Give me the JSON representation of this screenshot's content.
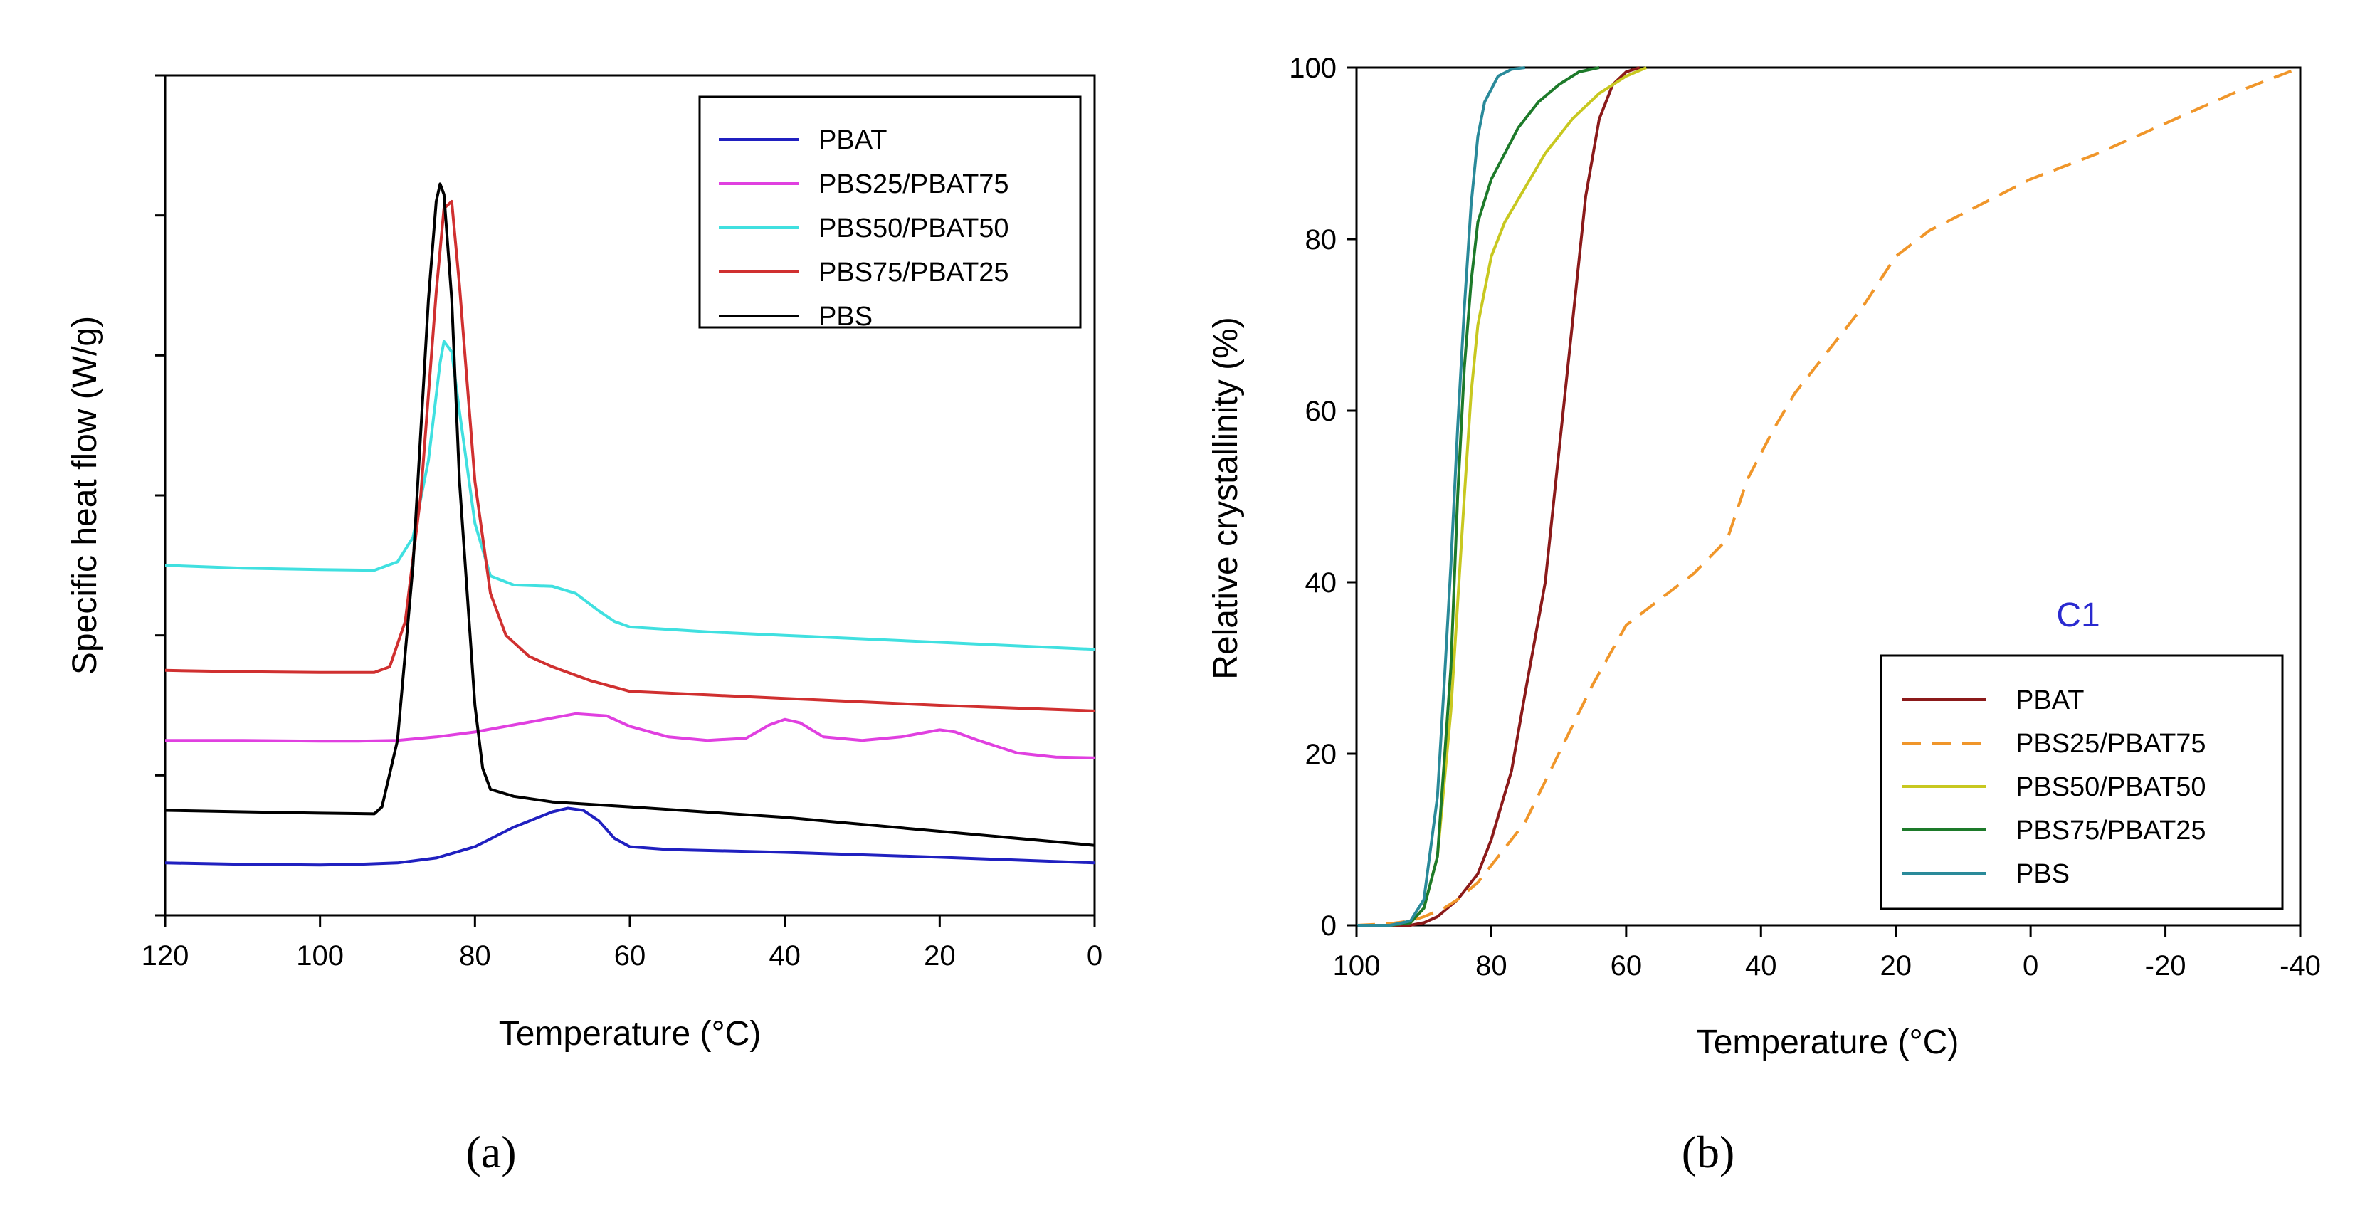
{
  "chart_data": [
    {
      "id": "a",
      "type": "line",
      "panel_label": "(a)",
      "title": "",
      "xlabel": "Temperature (°C)",
      "ylabel": "Specific heat flow (W/g)",
      "xlim": [
        120,
        0
      ],
      "x_ticks": [
        120,
        100,
        80,
        60,
        40,
        20,
        0
      ],
      "y_ticks_unlabeled": 7,
      "legend_position": "top-right",
      "series": [
        {
          "name": "PBAT",
          "color": "#2020c0",
          "points": [
            [
              120,
              -0.25
            ],
            [
              110,
              -0.27
            ],
            [
              100,
              -0.28
            ],
            [
              95,
              -0.27
            ],
            [
              90,
              -0.25
            ],
            [
              85,
              -0.18
            ],
            [
              80,
              -0.02
            ],
            [
              75,
              0.26
            ],
            [
              70,
              0.48
            ],
            [
              68,
              0.53
            ],
            [
              66,
              0.5
            ],
            [
              64,
              0.35
            ],
            [
              62,
              0.1
            ],
            [
              60,
              -0.02
            ],
            [
              55,
              -0.06
            ],
            [
              40,
              -0.1
            ],
            [
              20,
              -0.17
            ],
            [
              0,
              -0.25
            ]
          ]
        },
        {
          "name": "PBS25/PBAT75",
          "color": "#e040e0",
          "points": [
            [
              120,
              1.5
            ],
            [
              110,
              1.5
            ],
            [
              100,
              1.49
            ],
            [
              95,
              1.49
            ],
            [
              90,
              1.5
            ],
            [
              85,
              1.55
            ],
            [
              80,
              1.62
            ],
            [
              75,
              1.72
            ],
            [
              70,
              1.82
            ],
            [
              67,
              1.88
            ],
            [
              63,
              1.85
            ],
            [
              60,
              1.7
            ],
            [
              55,
              1.55
            ],
            [
              50,
              1.5
            ],
            [
              45,
              1.53
            ],
            [
              42,
              1.72
            ],
            [
              40,
              1.8
            ],
            [
              38,
              1.75
            ],
            [
              35,
              1.55
            ],
            [
              30,
              1.5
            ],
            [
              25,
              1.55
            ],
            [
              20,
              1.65
            ],
            [
              18,
              1.62
            ],
            [
              15,
              1.5
            ],
            [
              10,
              1.32
            ],
            [
              5,
              1.26
            ],
            [
              0,
              1.25
            ]
          ]
        },
        {
          "name": "PBS50/PBAT50",
          "color": "#40e0e0",
          "points": [
            [
              120,
              4.0
            ],
            [
              110,
              3.96
            ],
            [
              100,
              3.94
            ],
            [
              93,
              3.93
            ],
            [
              90,
              4.05
            ],
            [
              88,
              4.4
            ],
            [
              86,
              5.5
            ],
            [
              84.5,
              6.9
            ],
            [
              84,
              7.2
            ],
            [
              83,
              7.05
            ],
            [
              82,
              6.2
            ],
            [
              80,
              4.6
            ],
            [
              78,
              3.85
            ],
            [
              75,
              3.72
            ],
            [
              70,
              3.7
            ],
            [
              67,
              3.6
            ],
            [
              64,
              3.35
            ],
            [
              62,
              3.2
            ],
            [
              60,
              3.12
            ],
            [
              50,
              3.05
            ],
            [
              40,
              3.0
            ],
            [
              20,
              2.9
            ],
            [
              0,
              2.8
            ]
          ]
        },
        {
          "name": "PBS75/PBAT25",
          "color": "#d03030",
          "points": [
            [
              120,
              2.5
            ],
            [
              110,
              2.48
            ],
            [
              100,
              2.47
            ],
            [
              93,
              2.47
            ],
            [
              91,
              2.55
            ],
            [
              89,
              3.2
            ],
            [
              87,
              5.0
            ],
            [
              85,
              7.9
            ],
            [
              84,
              9.1
            ],
            [
              83,
              9.2
            ],
            [
              82,
              8.0
            ],
            [
              80,
              5.2
            ],
            [
              78,
              3.6
            ],
            [
              76,
              3.0
            ],
            [
              73,
              2.7
            ],
            [
              70,
              2.55
            ],
            [
              65,
              2.35
            ],
            [
              60,
              2.2
            ],
            [
              50,
              2.15
            ],
            [
              40,
              2.1
            ],
            [
              20,
              2.0
            ],
            [
              0,
              1.92
            ]
          ]
        },
        {
          "name": "PBS",
          "color": "#000000",
          "points": [
            [
              120,
              0.5
            ],
            [
              110,
              0.48
            ],
            [
              100,
              0.46
            ],
            [
              93,
              0.45
            ],
            [
              92,
              0.55
            ],
            [
              90,
              1.5
            ],
            [
              88,
              4.0
            ],
            [
              86,
              7.8
            ],
            [
              85,
              9.2
            ],
            [
              84.5,
              9.45
            ],
            [
              84,
              9.3
            ],
            [
              83,
              7.8
            ],
            [
              82,
              5.2
            ],
            [
              80,
              2.0
            ],
            [
              79,
              1.1
            ],
            [
              78,
              0.8
            ],
            [
              75,
              0.7
            ],
            [
              70,
              0.62
            ],
            [
              60,
              0.55
            ],
            [
              40,
              0.4
            ],
            [
              20,
              0.2
            ],
            [
              0,
              0.0
            ]
          ]
        }
      ]
    },
    {
      "id": "b",
      "type": "line",
      "panel_label": "(b)",
      "title": "",
      "xlabel": "Temperature (°C)",
      "ylabel": "Relative crystallinity (%)",
      "annotation": "C1",
      "annotation_color": "#2a2ad0",
      "xlim": [
        100,
        -40
      ],
      "ylim": [
        0,
        100
      ],
      "x_ticks": [
        100,
        80,
        60,
        40,
        20,
        0,
        -20,
        -40
      ],
      "y_ticks": [
        0,
        20,
        40,
        60,
        80,
        100
      ],
      "legend_position": "bottom-right",
      "series": [
        {
          "name": "PBAT",
          "color": "#8b1a1a",
          "dashed": false,
          "points": [
            [
              100,
              0
            ],
            [
              95,
              0
            ],
            [
              92,
              0
            ],
            [
              90,
              0.3
            ],
            [
              88,
              1
            ],
            [
              85,
              3
            ],
            [
              82,
              6
            ],
            [
              80,
              10
            ],
            [
              77,
              18
            ],
            [
              75,
              27
            ],
            [
              72,
              40
            ],
            [
              70,
              55
            ],
            [
              68,
              70
            ],
            [
              66,
              85
            ],
            [
              64,
              94
            ],
            [
              62,
              98
            ],
            [
              60,
              99.5
            ],
            [
              58,
              100
            ]
          ]
        },
        {
          "name": "PBS25/PBAT75",
          "color": "#f0962a",
          "dashed": true,
          "points": [
            [
              100,
              0
            ],
            [
              95,
              0.2
            ],
            [
              92,
              0.5
            ],
            [
              90,
              1
            ],
            [
              87,
              2
            ],
            [
              85,
              3
            ],
            [
              82,
              5
            ],
            [
              80,
              7
            ],
            [
              75,
              12
            ],
            [
              70,
              20
            ],
            [
              65,
              28
            ],
            [
              60,
              35
            ],
            [
              55,
              38
            ],
            [
              50,
              41
            ],
            [
              45,
              45
            ],
            [
              42,
              52
            ],
            [
              38,
              58
            ],
            [
              35,
              62
            ],
            [
              30,
              67
            ],
            [
              25,
              72
            ],
            [
              20,
              78
            ],
            [
              15,
              81
            ],
            [
              10,
              83
            ],
            [
              5,
              85
            ],
            [
              0,
              87
            ],
            [
              -10,
              90
            ],
            [
              -20,
              93.5
            ],
            [
              -30,
              97
            ],
            [
              -40,
              100
            ]
          ]
        },
        {
          "name": "PBS50/PBAT50",
          "color": "#c8c820",
          "dashed": false,
          "points": [
            [
              100,
              0
            ],
            [
              95,
              0
            ],
            [
              92,
              0.3
            ],
            [
              90,
              2
            ],
            [
              88,
              8
            ],
            [
              86,
              25
            ],
            [
              84,
              50
            ],
            [
              83,
              62
            ],
            [
              82,
              70
            ],
            [
              80,
              78
            ],
            [
              78,
              82
            ],
            [
              75,
              86
            ],
            [
              72,
              90
            ],
            [
              68,
              94
            ],
            [
              64,
              97
            ],
            [
              60,
              99
            ],
            [
              57,
              100
            ]
          ]
        },
        {
          "name": "PBS75/PBAT25",
          "color": "#1d7a2a",
          "dashed": false,
          "points": [
            [
              100,
              0
            ],
            [
              95,
              0
            ],
            [
              92,
              0.3
            ],
            [
              90,
              2
            ],
            [
              88,
              8
            ],
            [
              86,
              30
            ],
            [
              85,
              50
            ],
            [
              84,
              65
            ],
            [
              83,
              75
            ],
            [
              82,
              82
            ],
            [
              80,
              87
            ],
            [
              78,
              90
            ],
            [
              76,
              93
            ],
            [
              73,
              96
            ],
            [
              70,
              98
            ],
            [
              67,
              99.5
            ],
            [
              64,
              100
            ]
          ]
        },
        {
          "name": "PBS",
          "color": "#2a8a9a",
          "dashed": false,
          "points": [
            [
              100,
              0
            ],
            [
              95,
              0
            ],
            [
              92,
              0.5
            ],
            [
              90,
              3
            ],
            [
              88,
              15
            ],
            [
              87,
              28
            ],
            [
              86,
              42
            ],
            [
              85,
              58
            ],
            [
              84,
              72
            ],
            [
              83,
              84
            ],
            [
              82,
              92
            ],
            [
              81,
              96
            ],
            [
              79,
              99
            ],
            [
              77,
              99.8
            ],
            [
              75,
              100
            ]
          ]
        }
      ]
    }
  ]
}
